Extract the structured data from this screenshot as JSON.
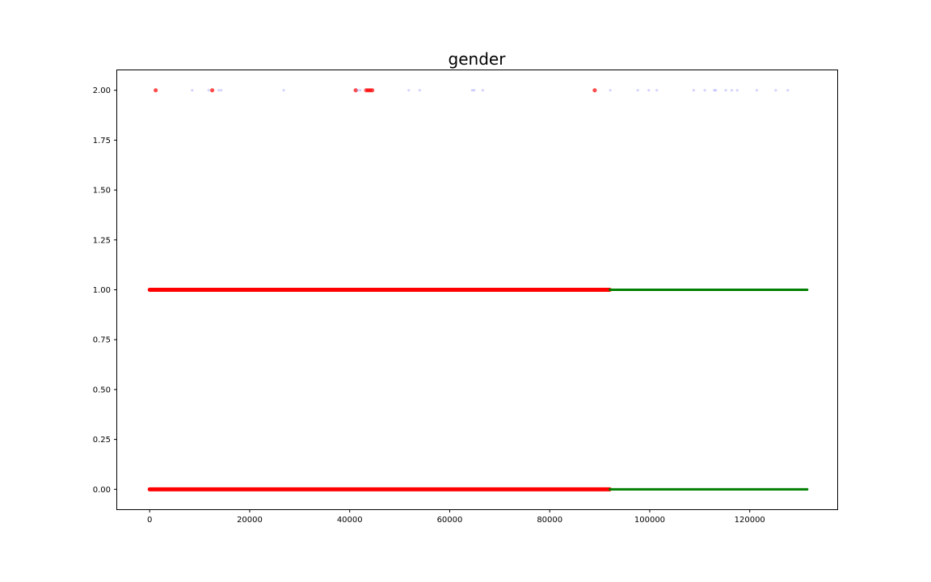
{
  "chart_data": {
    "type": "scatter",
    "title": "gender",
    "xlabel": "",
    "ylabel": "",
    "xlim": [
      -6500,
      137500
    ],
    "ylim": [
      -0.1,
      2.1
    ],
    "xticks": [
      0,
      20000,
      40000,
      60000,
      80000,
      100000,
      120000
    ],
    "yticks": [
      0.0,
      0.25,
      0.5,
      0.75,
      1.0,
      1.25,
      1.5,
      1.75,
      2.0
    ],
    "ytick_labels": [
      "0.00",
      "0.25",
      "0.50",
      "0.75",
      "1.00",
      "1.25",
      "1.50",
      "1.75",
      "2.00"
    ],
    "grid": false,
    "legend": "none",
    "series": [
      {
        "color": "#ff0000",
        "segments": [
          {
            "y": 0.0,
            "x_start": 0,
            "x_end": 92000
          },
          {
            "y": 1.0,
            "x_start": 0,
            "x_end": 92000
          }
        ],
        "points": [
          {
            "x": 1200,
            "y": 2.0
          },
          {
            "x": 12500,
            "y": 2.0
          },
          {
            "x": 41200,
            "y": 2.0
          },
          {
            "x": 43300,
            "y": 2.0
          },
          {
            "x": 43700,
            "y": 2.0
          },
          {
            "x": 44100,
            "y": 2.0
          },
          {
            "x": 44500,
            "y": 2.0
          },
          {
            "x": 89000,
            "y": 2.0
          }
        ]
      },
      {
        "color": "#008000",
        "segments": [
          {
            "y": 0.0,
            "x_start": 92000,
            "x_end": 131500
          },
          {
            "y": 1.0,
            "x_start": 92000,
            "x_end": 131500
          }
        ],
        "points": []
      },
      {
        "color": "#8080ff",
        "segments": [],
        "points": [
          {
            "x": 8500,
            "y": 2.0
          },
          {
            "x": 11800,
            "y": 2.0
          },
          {
            "x": 13800,
            "y": 2.0
          },
          {
            "x": 14300,
            "y": 2.0
          },
          {
            "x": 26800,
            "y": 2.0
          },
          {
            "x": 41600,
            "y": 2.0
          },
          {
            "x": 42100,
            "y": 2.0
          },
          {
            "x": 51800,
            "y": 2.0
          },
          {
            "x": 54000,
            "y": 2.0
          },
          {
            "x": 64500,
            "y": 2.0
          },
          {
            "x": 64900,
            "y": 2.0
          },
          {
            "x": 66600,
            "y": 2.0
          },
          {
            "x": 92100,
            "y": 2.0
          },
          {
            "x": 97600,
            "y": 2.0
          },
          {
            "x": 99800,
            "y": 2.0
          },
          {
            "x": 101400,
            "y": 2.0
          },
          {
            "x": 108800,
            "y": 2.0
          },
          {
            "x": 111000,
            "y": 2.0
          },
          {
            "x": 112900,
            "y": 2.0
          },
          {
            "x": 113200,
            "y": 2.0
          },
          {
            "x": 115200,
            "y": 2.0
          },
          {
            "x": 116400,
            "y": 2.0
          },
          {
            "x": 117500,
            "y": 2.0
          },
          {
            "x": 121400,
            "y": 2.0
          },
          {
            "x": 125200,
            "y": 2.0
          },
          {
            "x": 127600,
            "y": 2.0
          }
        ]
      }
    ]
  }
}
